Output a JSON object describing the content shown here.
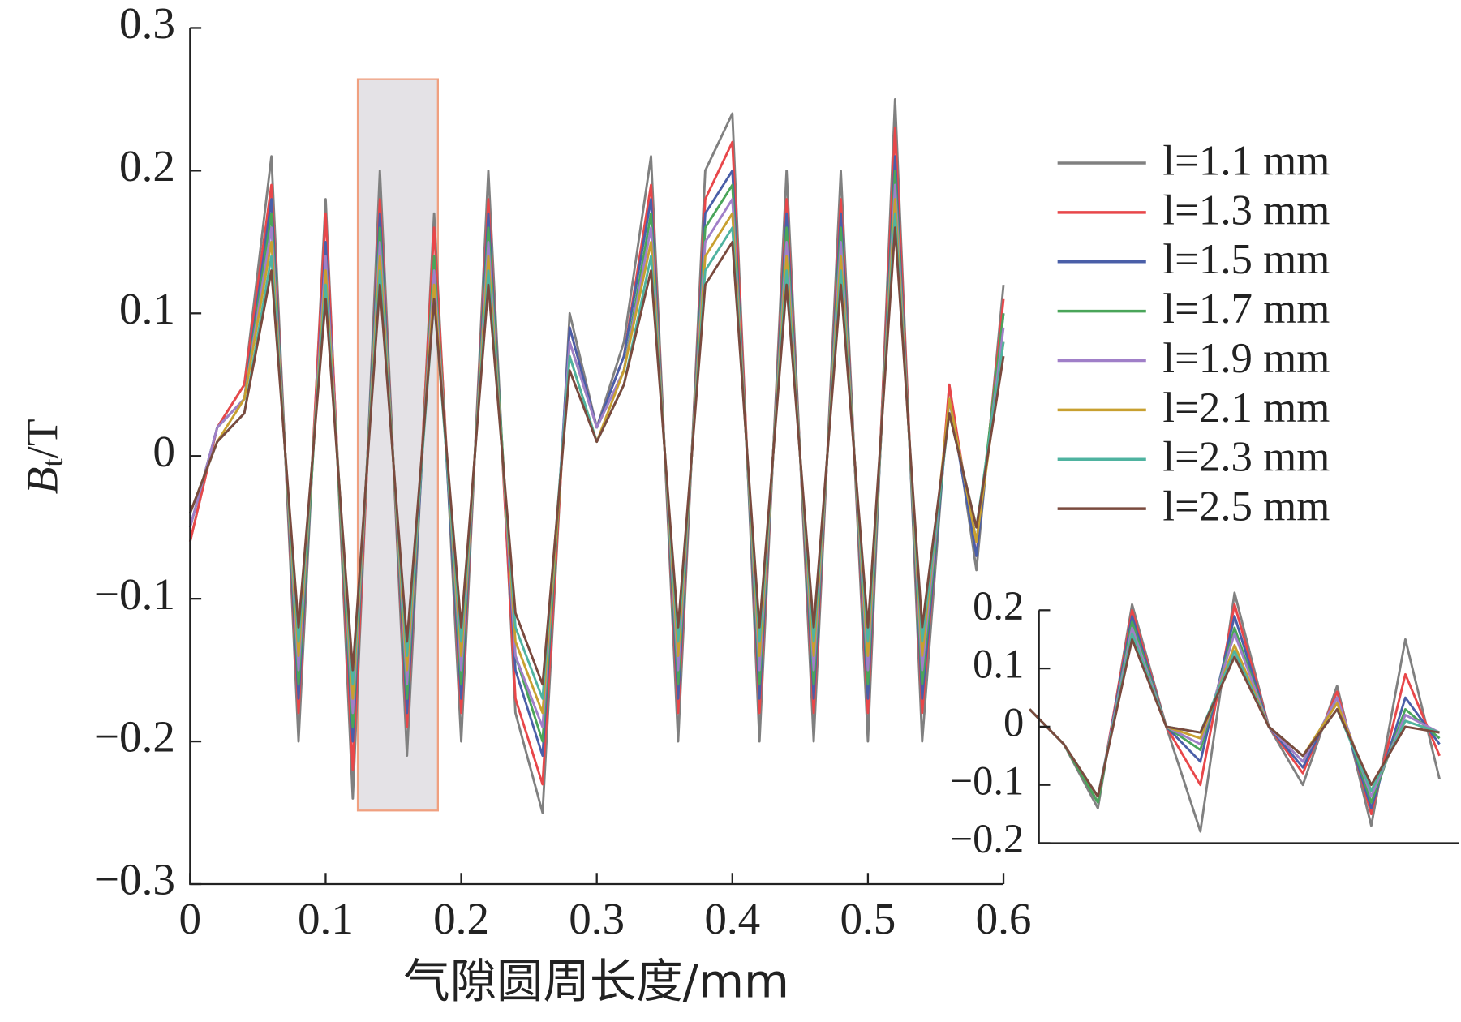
{
  "chart_data": [
    {
      "type": "line",
      "x_label": "气隙圆周长度/mm",
      "y_label_parts": [
        "B",
        "t",
        "/T"
      ],
      "x": [
        0,
        0.02,
        0.04,
        0.06,
        0.08,
        0.1,
        0.12,
        0.14,
        0.16,
        0.18,
        0.2,
        0.22,
        0.24,
        0.26,
        0.28,
        0.3,
        0.32,
        0.34,
        0.36,
        0.38,
        0.4,
        0.42,
        0.44,
        0.46,
        0.48,
        0.5,
        0.52,
        0.54,
        0.56,
        0.58,
        0.6
      ],
      "xlim": [
        0,
        0.6
      ],
      "xticks": [
        0,
        0.1,
        0.2,
        0.3,
        0.4,
        0.5,
        0.6
      ],
      "ylim": [
        -0.3,
        0.3
      ],
      "yticks": [
        {
          "value": -0.3,
          "label": "−0.3"
        },
        {
          "value": -0.2,
          "label": "−0.2"
        },
        {
          "value": -0.1,
          "label": "−0.1"
        },
        0,
        0.1,
        0.2,
        0.3
      ],
      "legend": "right",
      "series": [
        {
          "name": "l=1.1 mm",
          "color": "#808080",
          "values": [
            -0.06,
            0.02,
            0.05,
            0.21,
            -0.2,
            0.18,
            -0.24,
            0.2,
            -0.21,
            0.17,
            -0.2,
            0.2,
            -0.18,
            -0.25,
            0.1,
            0.02,
            0.08,
            0.21,
            -0.2,
            0.2,
            0.24,
            -0.2,
            0.2,
            -0.2,
            0.2,
            -0.2,
            0.25,
            -0.2,
            0.05,
            -0.08,
            0.12
          ]
        },
        {
          "name": "l=1.3 mm",
          "color": "#e8474a",
          "values": [
            -0.06,
            0.02,
            0.05,
            0.19,
            -0.18,
            0.17,
            -0.22,
            0.18,
            -0.19,
            0.16,
            -0.18,
            0.18,
            -0.17,
            -0.23,
            0.09,
            0.02,
            0.07,
            0.19,
            -0.18,
            0.18,
            0.22,
            -0.18,
            0.18,
            -0.18,
            0.18,
            -0.18,
            0.23,
            -0.18,
            0.05,
            -0.07,
            0.11
          ]
        },
        {
          "name": "l=1.5 mm",
          "color": "#4a5fa8",
          "values": [
            -0.05,
            0.02,
            0.04,
            0.18,
            -0.17,
            0.15,
            -0.2,
            0.17,
            -0.18,
            0.14,
            -0.17,
            0.17,
            -0.15,
            -0.21,
            0.09,
            0.02,
            0.07,
            0.18,
            -0.17,
            0.17,
            0.2,
            -0.17,
            0.17,
            -0.17,
            0.17,
            -0.17,
            0.21,
            -0.17,
            0.04,
            -0.07,
            0.1
          ]
        },
        {
          "name": "l=1.7 mm",
          "color": "#4aa55a",
          "values": [
            -0.05,
            0.02,
            0.04,
            0.17,
            -0.16,
            0.14,
            -0.19,
            0.16,
            -0.17,
            0.14,
            -0.16,
            0.16,
            -0.14,
            -0.2,
            0.08,
            0.02,
            0.06,
            0.17,
            -0.16,
            0.16,
            0.19,
            -0.16,
            0.16,
            -0.16,
            0.16,
            -0.16,
            0.2,
            -0.16,
            0.04,
            -0.06,
            0.1
          ]
        },
        {
          "name": "l=1.9 mm",
          "color": "#a07fc8",
          "values": [
            -0.05,
            0.02,
            0.04,
            0.16,
            -0.15,
            0.14,
            -0.18,
            0.15,
            -0.16,
            0.13,
            -0.15,
            0.15,
            -0.14,
            -0.19,
            0.08,
            0.02,
            0.06,
            0.16,
            -0.15,
            0.15,
            0.18,
            -0.15,
            0.15,
            -0.15,
            0.15,
            -0.15,
            0.19,
            -0.15,
            0.04,
            -0.06,
            0.09
          ]
        },
        {
          "name": "l=2.1 mm",
          "color": "#c8a030",
          "values": [
            -0.04,
            0.01,
            0.04,
            0.15,
            -0.14,
            0.13,
            -0.17,
            0.14,
            -0.15,
            0.12,
            -0.14,
            0.14,
            -0.13,
            -0.18,
            0.07,
            0.01,
            0.06,
            0.15,
            -0.14,
            0.14,
            0.17,
            -0.14,
            0.14,
            -0.14,
            0.14,
            -0.14,
            0.18,
            -0.14,
            0.04,
            -0.06,
            0.08
          ]
        },
        {
          "name": "l=2.3 mm",
          "color": "#4fb3a0",
          "values": [
            -0.04,
            0.01,
            0.03,
            0.14,
            -0.13,
            0.12,
            -0.16,
            0.13,
            -0.14,
            0.11,
            -0.13,
            0.13,
            -0.12,
            -0.17,
            0.07,
            0.01,
            0.05,
            0.14,
            -0.13,
            0.13,
            0.16,
            -0.13,
            0.13,
            -0.13,
            0.13,
            -0.13,
            0.17,
            -0.13,
            0.03,
            -0.05,
            0.08
          ]
        },
        {
          "name": "l=2.5 mm",
          "color": "#7a4a3e",
          "values": [
            -0.04,
            0.01,
            0.03,
            0.13,
            -0.12,
            0.11,
            -0.15,
            0.12,
            -0.13,
            0.11,
            -0.12,
            0.12,
            -0.11,
            -0.16,
            0.06,
            0.01,
            0.05,
            0.13,
            -0.12,
            0.12,
            0.15,
            -0.12,
            0.12,
            -0.12,
            0.12,
            -0.12,
            0.16,
            -0.12,
            0.03,
            -0.05,
            0.07
          ]
        }
      ]
    },
    {
      "type": "line",
      "x": [
        0.12,
        0.125,
        0.13,
        0.135,
        0.14,
        0.145,
        0.15,
        0.155,
        0.16,
        0.165,
        0.17,
        0.175,
        0.18
      ],
      "xlim": [
        0.12,
        0.18
      ],
      "ylim": [
        -0.2,
        0.2
      ],
      "yticks": [
        {
          "value": -0.2,
          "label": "−0.2"
        },
        {
          "value": -0.1,
          "label": "−0.1"
        },
        0,
        0.1,
        0.2
      ],
      "series": [
        {
          "color": "#808080",
          "values": [
            0.03,
            -0.03,
            -0.14,
            0.21,
            0,
            -0.18,
            0.23,
            0,
            -0.1,
            0.07,
            -0.17,
            0.15,
            -0.09
          ]
        },
        {
          "color": "#e8474a",
          "values": [
            0.03,
            -0.03,
            -0.13,
            0.2,
            0,
            -0.1,
            0.21,
            0,
            -0.08,
            0.06,
            -0.15,
            0.09,
            -0.05
          ]
        },
        {
          "color": "#4a5fa8",
          "values": [
            0.03,
            -0.03,
            -0.13,
            0.19,
            0,
            -0.06,
            0.19,
            0,
            -0.07,
            0.05,
            -0.14,
            0.05,
            -0.03
          ]
        },
        {
          "color": "#4aa55a",
          "values": [
            0.03,
            -0.03,
            -0.13,
            0.18,
            0,
            -0.04,
            0.17,
            0,
            -0.06,
            0.05,
            -0.13,
            0.03,
            -0.02
          ]
        },
        {
          "color": "#a07fc8",
          "values": [
            0.03,
            -0.03,
            -0.12,
            0.17,
            0,
            -0.03,
            0.16,
            0,
            -0.06,
            0.05,
            -0.12,
            0.02,
            -0.01
          ]
        },
        {
          "color": "#c8a030",
          "values": [
            0.03,
            -0.03,
            -0.12,
            0.16,
            0,
            -0.02,
            0.14,
            0,
            -0.05,
            0.04,
            -0.11,
            0.01,
            -0.01
          ]
        },
        {
          "color": "#4fb3a0",
          "values": [
            0.03,
            -0.03,
            -0.12,
            0.16,
            0,
            -0.01,
            0.13,
            0,
            -0.05,
            0.03,
            -0.11,
            0.01,
            -0.01
          ]
        },
        {
          "color": "#7a4a3e",
          "values": [
            0.03,
            -0.03,
            -0.12,
            0.15,
            0,
            -0.01,
            0.12,
            0,
            -0.05,
            0.03,
            -0.1,
            0,
            -0.01
          ]
        }
      ]
    }
  ]
}
